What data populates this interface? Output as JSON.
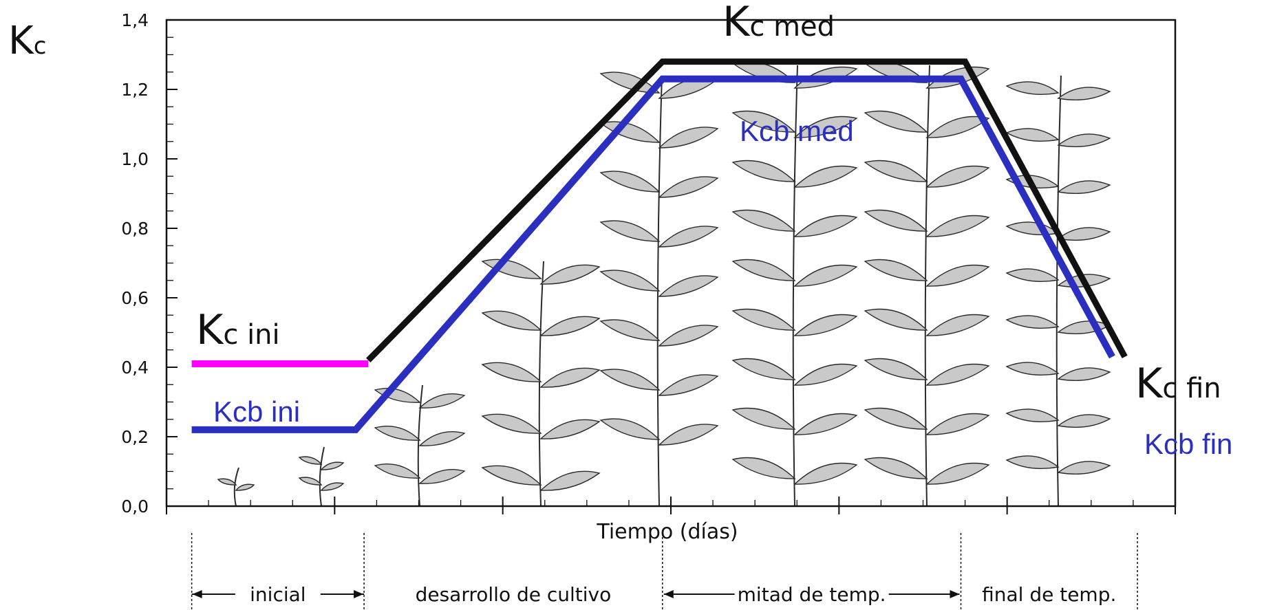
{
  "chart_data": {
    "type": "line",
    "title": "",
    "ylabel": {
      "main": "K",
      "sub": "c"
    },
    "xlabel": "Tiempo (días)",
    "ylim": [
      0,
      1.4
    ],
    "yticks": [
      "0,0",
      "0,2",
      "0,4",
      "0,6",
      "0,8",
      "1,0",
      "1,2",
      "1,4"
    ],
    "ytick_values": [
      0,
      0.2,
      0.4,
      0.6,
      0.8,
      1.0,
      1.2,
      1.4
    ],
    "xlim": [
      0,
      120
    ],
    "grid": false,
    "series": [
      {
        "key": "kc_ini",
        "color": "#ff00ff",
        "x": [
          3,
          24
        ],
        "y": [
          0.41,
          0.41
        ]
      },
      {
        "key": "kc",
        "color": "#111111",
        "x": [
          24,
          59,
          95,
          114
        ],
        "y": [
          0.42,
          1.28,
          1.28,
          0.43
        ]
      },
      {
        "key": "kcb",
        "color": "#2b2fbf",
        "x": [
          3,
          22.5,
          59,
          94.5,
          112.5
        ],
        "y": [
          0.22,
          0.22,
          1.23,
          1.23,
          0.43
        ]
      }
    ],
    "annotations": {
      "kc_ini": {
        "main": "K",
        "sub": "c ini"
      },
      "kc_med": {
        "main": "K",
        "sub": "c med"
      },
      "kc_fin": {
        "main": "K",
        "sub": "c fin"
      },
      "kcb_ini": "Kcb ini",
      "kcb_med": "Kcb med",
      "kcb_fin": "Kcb fin"
    },
    "stages": [
      {
        "label": "inicial",
        "start": 3,
        "end": 23.5
      },
      {
        "label": "desarrollo de cultivo",
        "start": 23.5,
        "end": 59
      },
      {
        "label": "mitad de temp.",
        "start": 59,
        "end": 94.5
      },
      {
        "label": "final de temp.",
        "start": 94.5,
        "end": 115.5
      }
    ],
    "colors": {
      "kcb": "#2b2fbf",
      "kc_ini": "#ff00ff",
      "kc": "#111111"
    },
    "background_illustration": "plant growth stages (seedlings to mature plants)"
  }
}
